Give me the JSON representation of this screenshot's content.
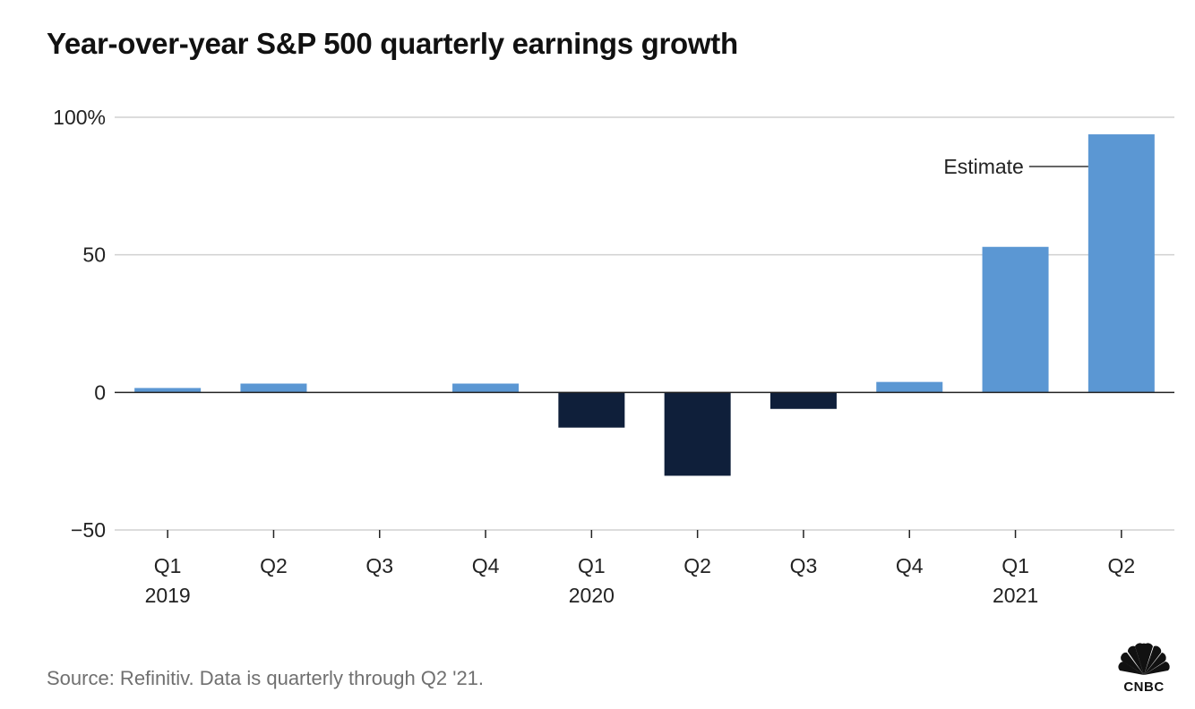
{
  "chart_data": {
    "type": "bar",
    "title": "Year-over-year S&P 500 quarterly earnings growth",
    "categories": [
      "Q1",
      "Q2",
      "Q3",
      "Q4",
      "Q1",
      "Q2",
      "Q3",
      "Q4",
      "Q1",
      "Q2"
    ],
    "year_labels": [
      "2019",
      "",
      "",
      "",
      "2020",
      "",
      "",
      "",
      "2021",
      ""
    ],
    "values": [
      1.6,
      3.2,
      0.0,
      3.2,
      -12.8,
      -30.3,
      -6.0,
      3.8,
      52.9,
      93.8
    ],
    "estimate_flags": [
      false,
      false,
      false,
      false,
      false,
      false,
      false,
      false,
      false,
      true
    ],
    "ylim": [
      -50,
      100
    ],
    "yticks": [
      100,
      50,
      0,
      -50
    ],
    "ytick_labels": [
      "100%",
      "50",
      "0",
      "−50"
    ],
    "xlabel": "",
    "ylabel": "",
    "grid": true,
    "annotations": [
      {
        "text": "Estimate",
        "category_index": 9
      }
    ],
    "colors": {
      "positive": "#5b97d3",
      "negative": "#0f1f3a",
      "gridline": "#d0d0d0",
      "zero_line": "#222222",
      "annotation_line": "#333333"
    }
  },
  "footer": {
    "source": "Source: Refinitiv. Data is quarterly through Q2 '21."
  },
  "logo": {
    "text": "CNBC",
    "icon": "peacock-icon",
    "color": "#111111"
  }
}
